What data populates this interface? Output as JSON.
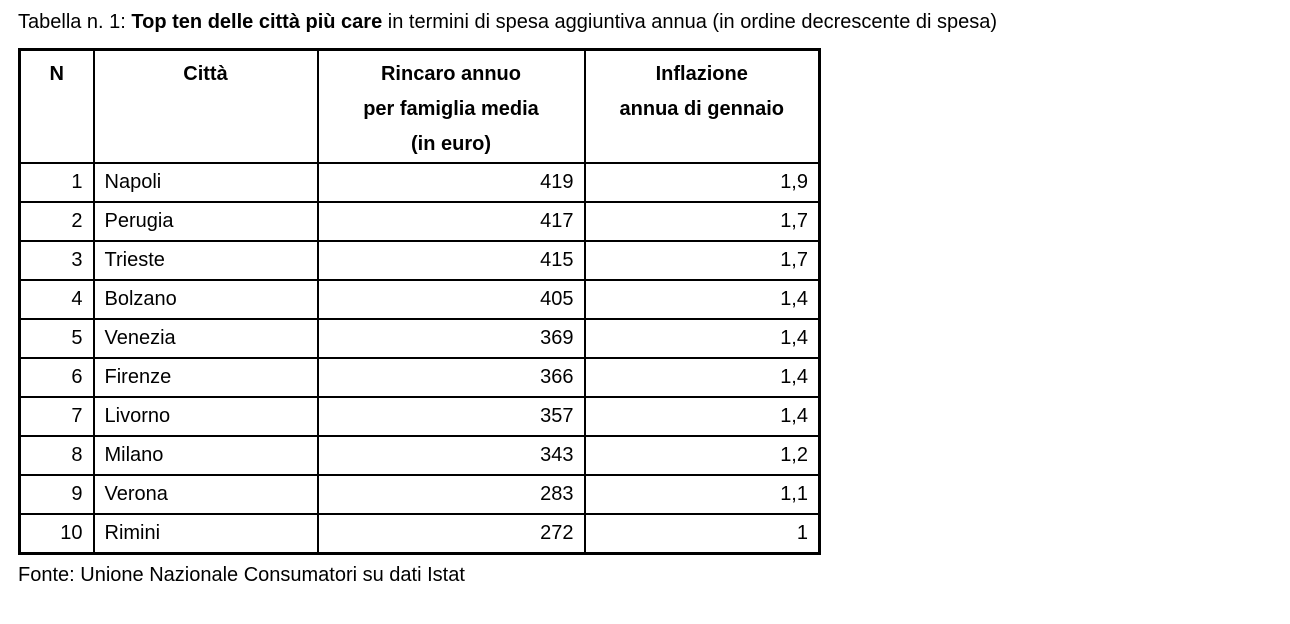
{
  "page": {
    "caption": {
      "prefix": "Tabella n. 1: ",
      "bold": "Top ten delle città più care",
      "suffix": " in termini di spesa aggiuntiva annua (in ordine decrescente di spesa)"
    },
    "source": "Fonte: Unione Nazionale Consumatori su dati Istat"
  },
  "table": {
    "headers": [
      "N",
      "Città",
      "Rincaro annuo\nper famiglia media\n(in euro)",
      "Inflazione\nannua di gennaio"
    ],
    "rows": [
      [
        "1",
        "Napoli",
        "419",
        "1,9"
      ],
      [
        "2",
        "Perugia",
        "417",
        "1,7"
      ],
      [
        "3",
        "Trieste",
        "415",
        "1,7"
      ],
      [
        "4",
        "Bolzano",
        "405",
        "1,4"
      ],
      [
        "5",
        "Venezia",
        "369",
        "1,4"
      ],
      [
        "6",
        "Firenze",
        "366",
        "1,4"
      ],
      [
        "7",
        "Livorno",
        "357",
        "1,4"
      ],
      [
        "8",
        "Milano",
        "343",
        "1,2"
      ],
      [
        "9",
        "Verona",
        "283",
        "1,1"
      ],
      [
        "10",
        "Rimini",
        "272",
        "1"
      ]
    ]
  },
  "chart_data": {
    "type": "table",
    "title": "Tabella n. 1: Top ten delle città più care in termini di spesa aggiuntiva annua (in ordine decrescente di spesa)",
    "columns": [
      "N",
      "Città",
      "Rincaro annuo per famiglia media (in euro)",
      "Inflazione annua di gennaio"
    ],
    "rows": [
      [
        1,
        "Napoli",
        419,
        1.9
      ],
      [
        2,
        "Perugia",
        417,
        1.7
      ],
      [
        3,
        "Trieste",
        415,
        1.7
      ],
      [
        4,
        "Bolzano",
        405,
        1.4
      ],
      [
        5,
        "Venezia",
        369,
        1.4
      ],
      [
        6,
        "Firenze",
        366,
        1.4
      ],
      [
        7,
        "Livorno",
        357,
        1.4
      ],
      [
        8,
        "Milano",
        343,
        1.2
      ],
      [
        9,
        "Verona",
        283,
        1.1
      ],
      [
        10,
        "Rimini",
        272,
        1.0
      ]
    ],
    "source": "Fonte: Unione Nazionale Consumatori su dati Istat",
    "decimal_separator": ",",
    "text_color": "#000000",
    "border_color": "#000000",
    "background_color": "#ffffff"
  }
}
